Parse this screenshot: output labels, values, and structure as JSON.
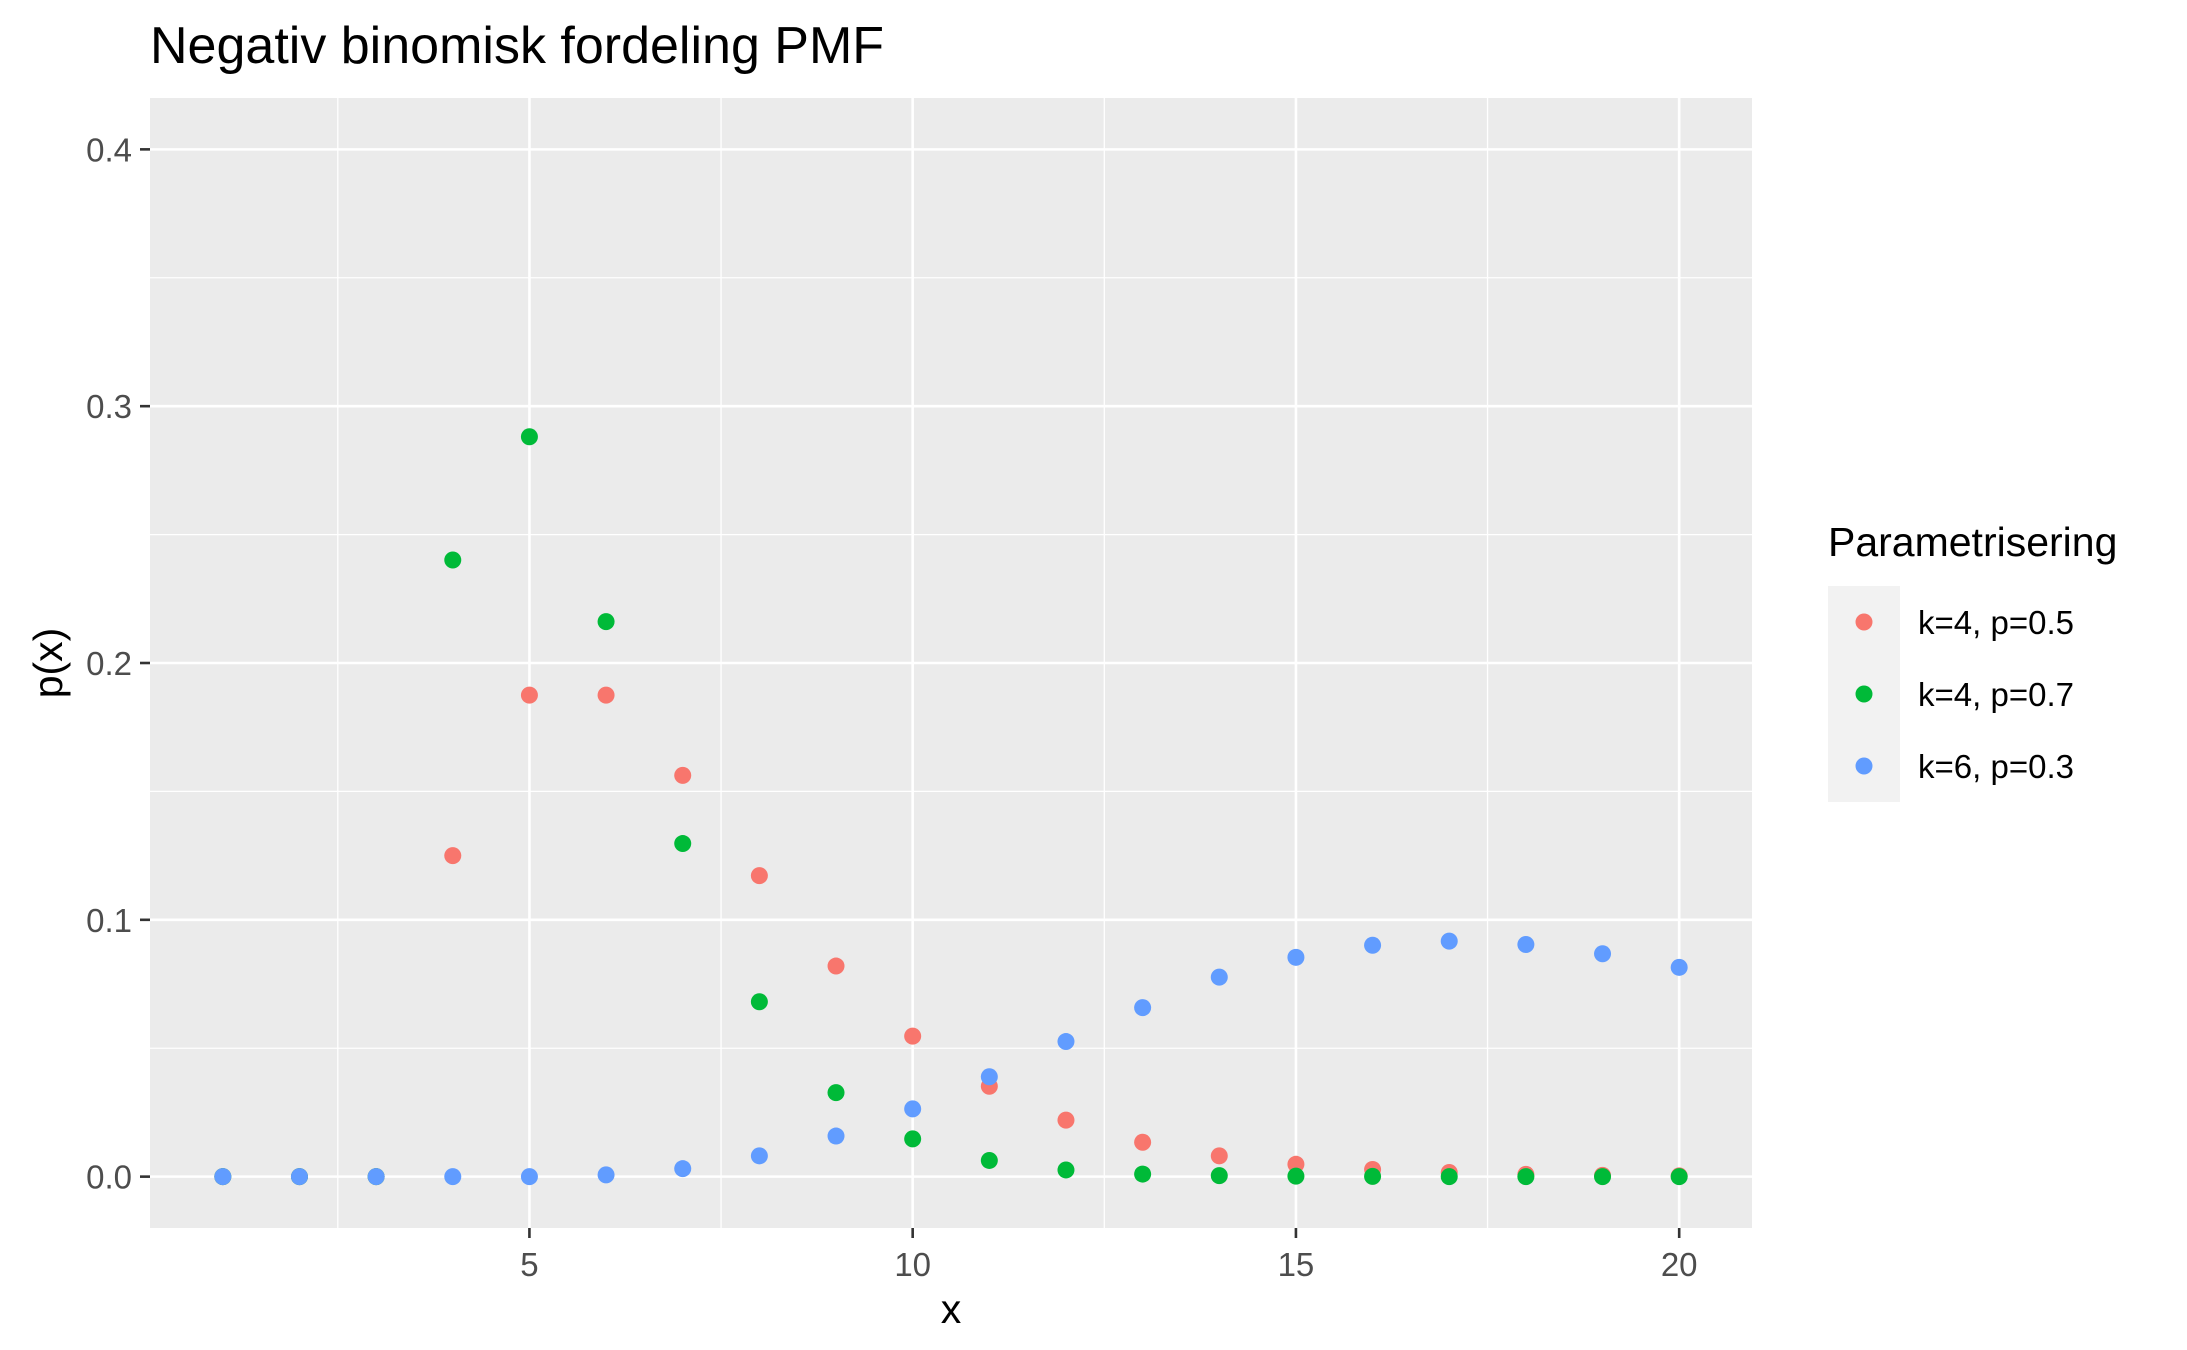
{
  "chart_data": {
    "type": "scatter",
    "title": "Negativ binomisk fordeling PMF",
    "xlabel": "x",
    "ylabel": "p(x)",
    "xlim": [
      0.05,
      20.95
    ],
    "ylim": [
      -0.02,
      0.42
    ],
    "x_ticks": [
      5,
      10,
      15,
      20
    ],
    "x_tick_labels": [
      "5",
      "10",
      "15",
      "20"
    ],
    "y_ticks": [
      0.0,
      0.1,
      0.2,
      0.3,
      0.4
    ],
    "y_tick_labels": [
      "0.0",
      "0.1",
      "0.2",
      "0.3",
      "0.4"
    ],
    "grid": true,
    "legend": {
      "title": "Parametrisering",
      "position": "right"
    },
    "series": [
      {
        "name": "k=4, p=0.5",
        "color": "#F8766D",
        "x": [
          1,
          2,
          3,
          4,
          5,
          6,
          7,
          8,
          9,
          10,
          11,
          12,
          13,
          14,
          15,
          16,
          17,
          18,
          19,
          20
        ],
        "y": [
          0,
          0,
          0,
          0.125,
          0.1875,
          0.1875,
          0.15625,
          0.1172,
          0.082,
          0.0547,
          0.0352,
          0.022,
          0.0134,
          0.0081,
          0.0048,
          0.0028,
          0.0016,
          0.0009,
          0.0005,
          0.0003
        ]
      },
      {
        "name": "k=4, p=0.7",
        "color": "#00BA38",
        "x": [
          1,
          2,
          3,
          4,
          5,
          6,
          7,
          8,
          9,
          10,
          11,
          12,
          13,
          14,
          15,
          16,
          17,
          18,
          19,
          20
        ],
        "y": [
          0,
          0,
          0,
          0.2401,
          0.2881,
          0.2161,
          0.1297,
          0.0681,
          0.0327,
          0.0147,
          0.0063,
          0.0026,
          0.001,
          0.0004,
          0.0002,
          0.0001,
          0,
          0,
          0,
          0
        ]
      },
      {
        "name": "k=6, p=0.3",
        "color": "#619CFF",
        "x": [
          1,
          2,
          3,
          4,
          5,
          6,
          7,
          8,
          9,
          10,
          11,
          12,
          13,
          14,
          15,
          16,
          17,
          18,
          19,
          20
        ],
        "y": [
          0,
          0,
          0,
          0,
          0,
          0.0007,
          0.0031,
          0.0081,
          0.0158,
          0.0264,
          0.0389,
          0.0526,
          0.0658,
          0.0777,
          0.0854,
          0.0901,
          0.0917,
          0.0904,
          0.0868,
          0.0815
        ]
      }
    ]
  }
}
